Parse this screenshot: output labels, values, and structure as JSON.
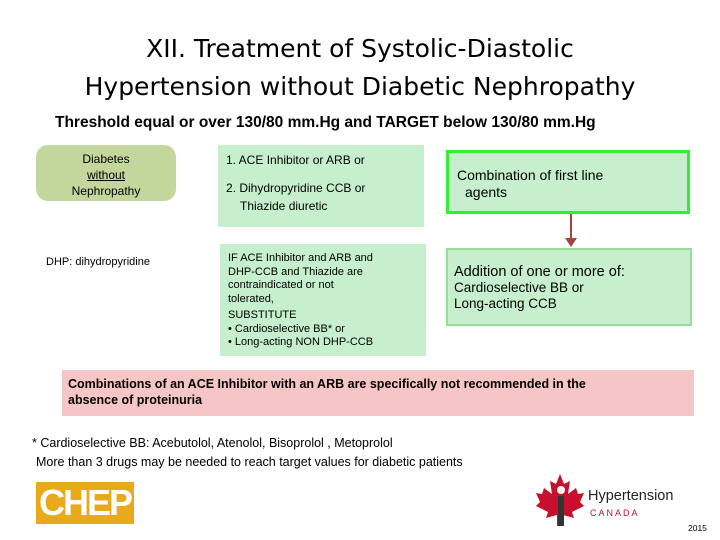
{
  "title": {
    "line1": "XII. Treatment of Systolic-Diastolic",
    "line2": "Hypertension without Diabetic Nephropathy"
  },
  "threshold": "Threshold equal or over 130/80 mm.Hg and TARGET below 130/80 mm.Hg",
  "diabetes_box": {
    "line1": "Diabetes",
    "line2": "without",
    "line3": "Nephropathy"
  },
  "dhp_note": "DHP: dihydropyridine",
  "first_line_box": {
    "line1": "1. ACE Inhibitor or ARB or",
    "line2": "2. Dihydropyridine CCB or",
    "line3": "Thiazide diuretic"
  },
  "combination_box": {
    "line1": "Combination of first line",
    "line2": "agents"
  },
  "substitute_box": {
    "line1": "IF ACE Inhibitor and ARB and",
    "line2": "DHP-CCB and Thiazide are",
    "line3": "contraindicated or not",
    "line4": "tolerated,",
    "line5": "SUBSTITUTE",
    "line6": "• Cardioselective BB* or",
    "line7": "• Long-acting NON DHP-CCB"
  },
  "addition_box": {
    "heading": "Addition of one or more of:",
    "line1": "Cardioselective BB or",
    "line2": "Long-acting CCB"
  },
  "warning": {
    "line1": "Combinations of an ACE Inhibitor with an ARB are specifically not recommended in the",
    "line2": "absence of proteinuria"
  },
  "footnote1": "* Cardioselective BB: Acebutolol, Atenolol, Bisoprolol , Metoprolol",
  "footnote2": "More than 3 drugs may be needed to reach target values for diabetic patients",
  "logos": {
    "chep": "CHEP",
    "htn_word": "Hypertension",
    "htn_sub": "CANADA"
  },
  "year": "2015",
  "colors": {
    "box_green": "#c6efce",
    "olive": "#c3d69b",
    "border_green": "#33ee33",
    "arrow": "#a0453f",
    "warning_pink": "#f6c5c5",
    "chep_gold": "#e8a91b",
    "maple_red": "#c8102e"
  }
}
